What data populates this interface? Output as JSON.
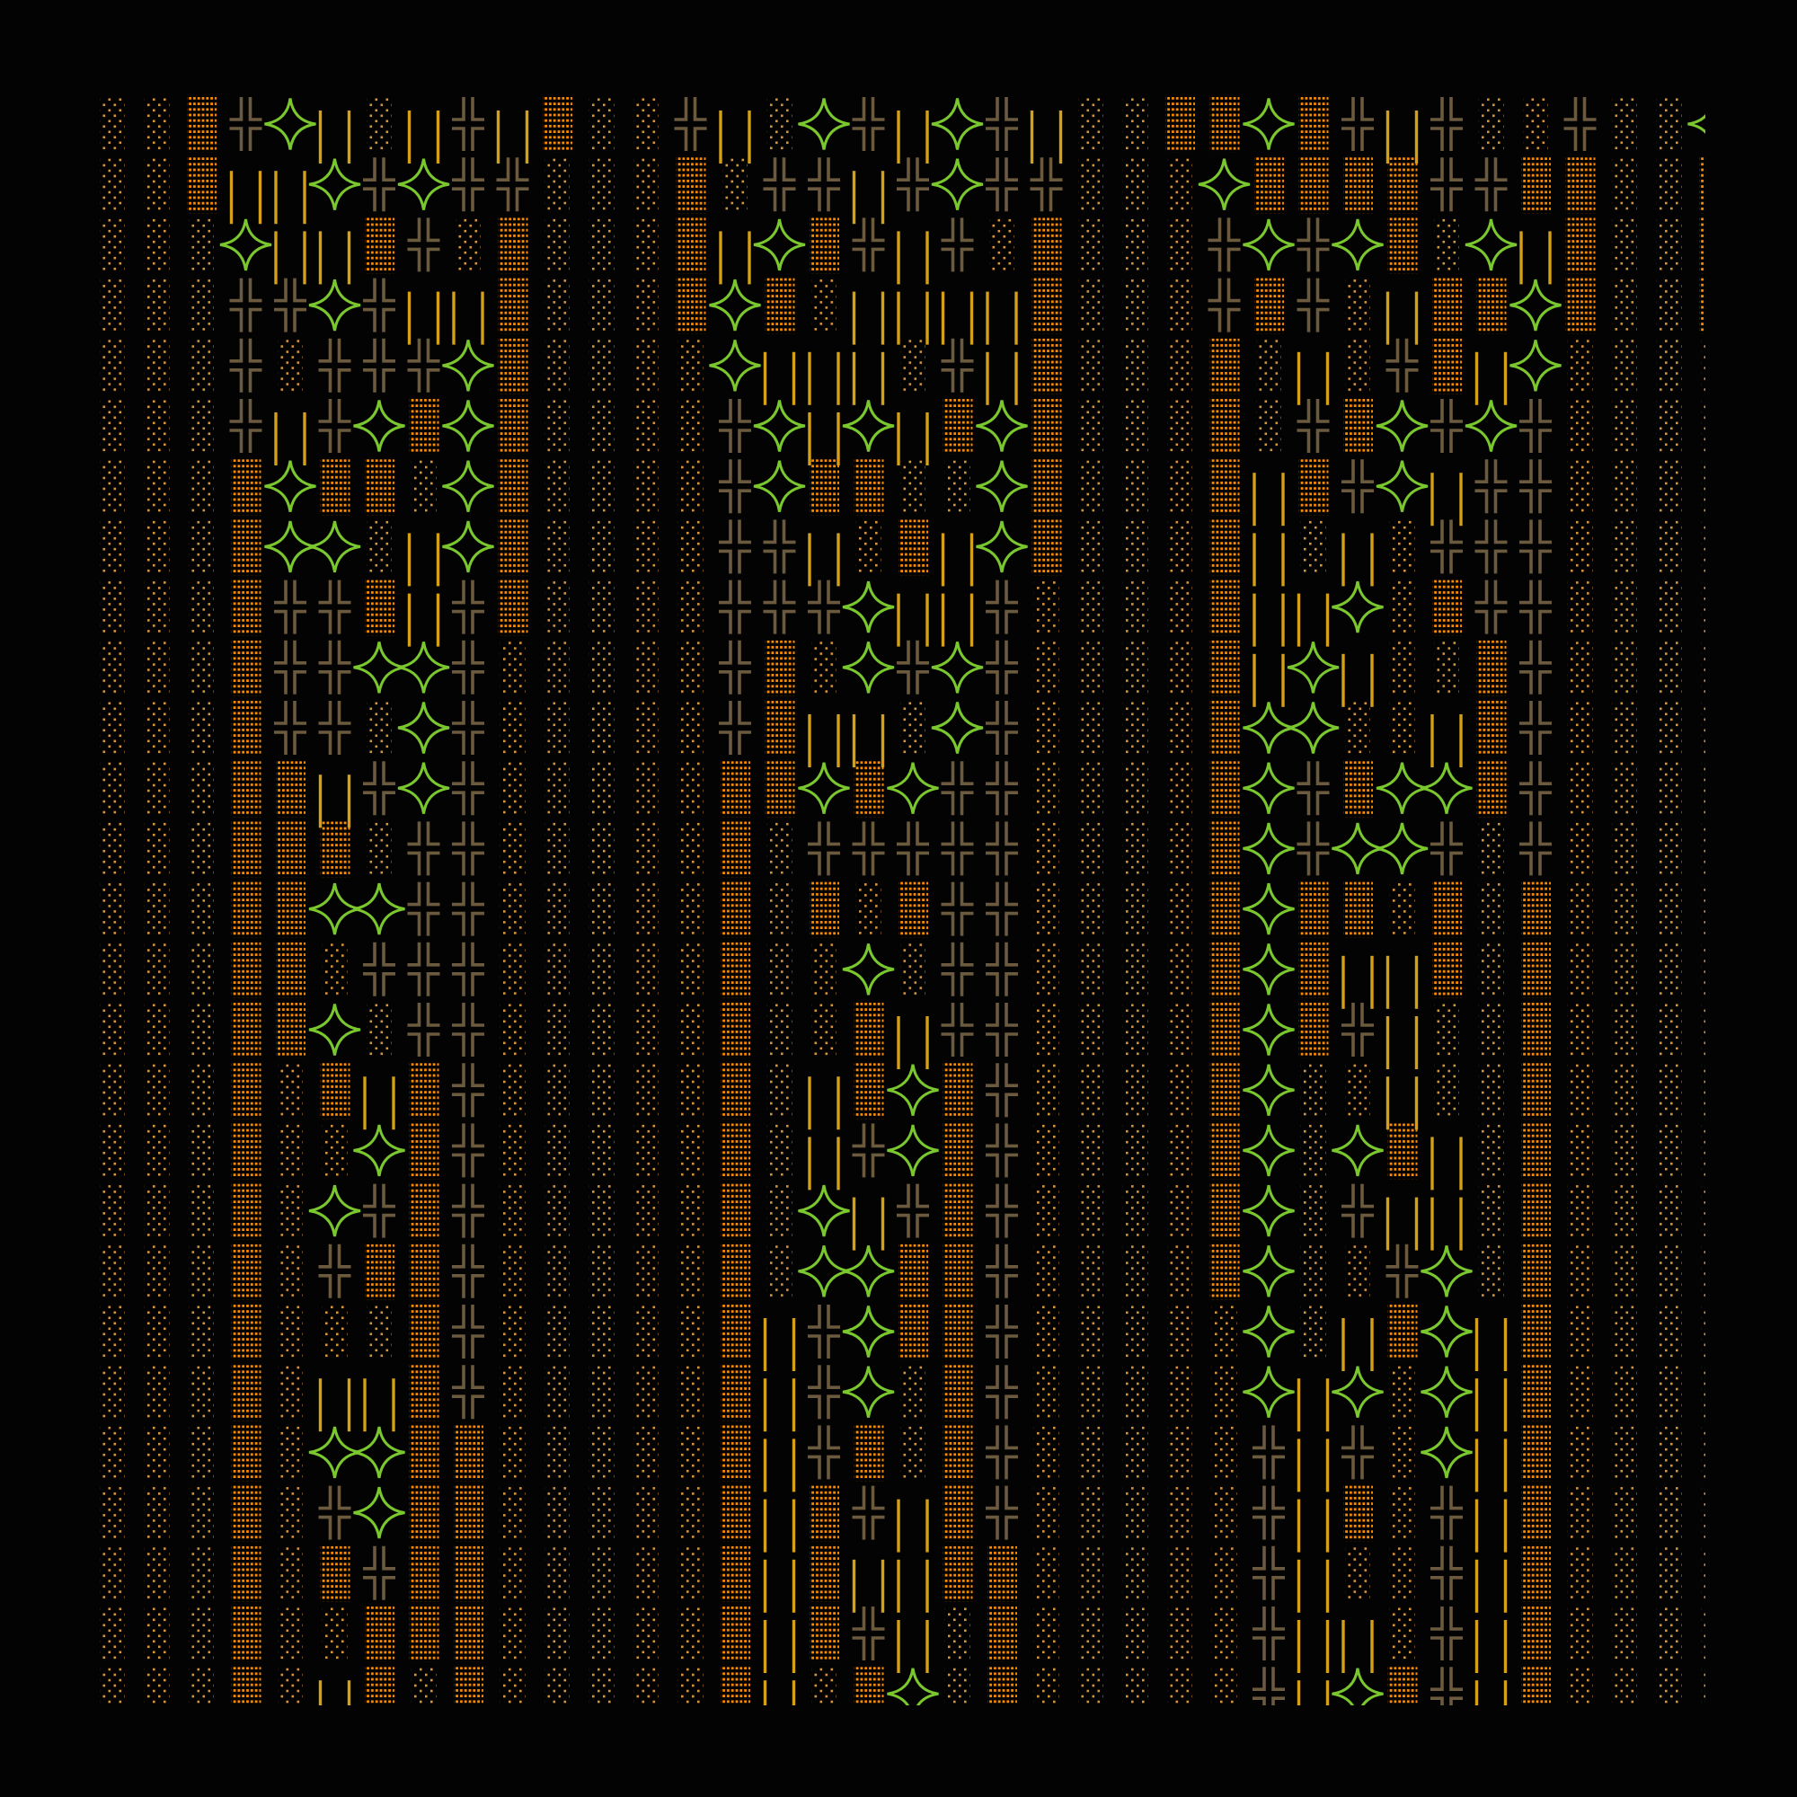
{
  "palette": {
    "background": "#030303",
    "light_shade": "#d6953a",
    "medium_shade": "#ff8c00",
    "double_cross": "#6b5a3e",
    "double_bar": "#d4a017",
    "star": "#7ac72e"
  },
  "glyphs": {
    "░": "light-shade-icon",
    "▒": "medium-shade-icon",
    "╫": "double-cross-icon",
    "║": "double-bar-icon",
    "✦": "four-point-star-icon"
  },
  "grid": {
    "rows": [
      "░░▒╫✦║░║╫║▒░░╫║░✦╫║✦╫║░░▒▒✦▒╫║╫░░╫░░✦",
      "░░▒║║✦╫✦╫╫░░░▒░╫╫║╫✦╫╫░░░✦▒▒▒▒╫╫▒▒░░▒",
      "░░░✦║║▒╫░▒░░░▒║✦▒╫║╫░▒░░░╫✦╫✦▒░✦║▒░░▒",
      "░░░╫╫✦╫║║▒░░░▒✦▒░║║║║▒░░░╫▒╫░║▒▒✦▒░░▒",
      "░░░╫░╫╫╫✦▒░░░░✦║║║░╫║▒░░░▒░║░╫▒║✦░░░░",
      "░░░╫║╫✦▒✦▒░░░░╫✦║✦║▒✦▒░░░▒░╫▒✦╫✦╫░░░░",
      "░░░▒✦▒▒░✦▒░░░░╫✦▒▒░░✦▒░░░▒║▒╫✦║╫╫░░░░",
      "░░░▒✦✦░║✦▒░░░░╫╫║░▒║✦▒░░░▒║░║░╫╫╫░░░░",
      "░░░▒╫╫▒║╫▒░░░░╫╫╫✦║║╫░░░░▒║║✦░▒╫╫░░░░",
      "░░░▒╫╫✦✦╫░░░░░╫▒░✦╫✦╫░░░░▒║✦║░░▒╫░░░░",
      "░░░▒╫╫░✦╫░░░░░╫▒║║░✦╫░░░░▒✦✦░░║▒╫░░░░",
      "░░░▒▒║╫✦╫░░░░░▒▒✦▒✦╫╫░░░░▒✦╫▒✦✦▒╫░░░░",
      "░░░▒▒▒░╫╫░░░░░▒░╫╫╫╫╫░░░░▒✦╫✦✦╫░╫░░░░",
      "░░░▒▒✦✦╫╫░░░░░▒░▒░▒╫╫░░░░▒✦▒▒░▒░▒░░░░",
      "░░░▒▒░╫╫╫░░░░░▒░░✦░╫╫░░░░▒✦▒║║▒░▒░░░░",
      "░░░▒▒✦░╫╫░░░░░▒░░▒║╫╫░░░░▒✦▒╫║░░▒░░░░",
      "░░░▒░▒║▒╫░░░░░▒░║▒✦▒╫░░░░▒✦░░║░░▒░░░░",
      "░░░▒░░✦▒╫░░░░░▒░║╫✦▒╫░░░░▒✦░✦▒║░▒░░░░",
      "░░░▒░✦╫▒╫░░░░░▒░✦║╫▒╫░░░░▒✦░╫║║░▒░░░░",
      "░░░▒░╫▒▒╫░░░░░▒░✦✦▒▒╫░░░░▒✦░░╫✦░▒░░░░",
      "░░░▒░░░▒╫░░░░░▒║╫✦▒▒╫░░░░░✦░║▒✦║▒░░░░",
      "░░░▒░║║▒╫░░░░░▒║╫✦░▒╫░░░░░✦║✦░✦║▒░░░░",
      "░░░▒░✦✦▒▒░░░░░▒║╫▒░▒╫░░░░░╫║╫░✦║▒░░░░",
      "░░░▒░╫✦▒▒░░░░░▒║▒╫║▒╫░░░░░╫║▒░╫║▒░░░░",
      "░░░▒░▒╫▒▒░░░░░▒║▒║║▒▒░░░░░╫║░░╫║▒░░░░",
      "░░░▒░░▒▒▒░░░░░▒║▒╫║░▒░░░░░╫║║░╫║▒░░░░",
      "░░░▒░║▒░▒░░░░░▒║░▒✦░▒░░░░░╫║✦▒╫║▒░░░░"
    ]
  }
}
